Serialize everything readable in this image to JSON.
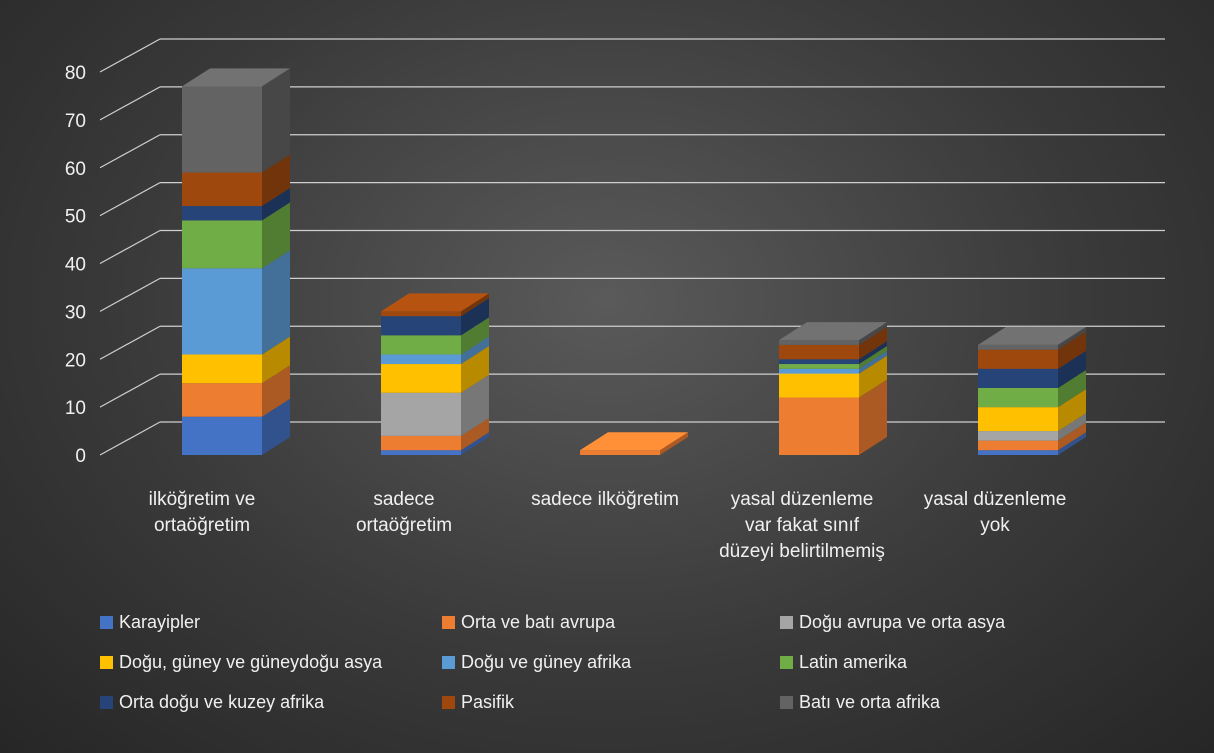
{
  "chart_data": {
    "type": "bar",
    "stacked": true,
    "three_d": true,
    "categories": [
      "ilköğretim ve ortaöğretim",
      "sadece ortaöğretim",
      "sadece ilköğretim",
      "yasal düzenleme var fakat sınıf düzeyi belirtilmemiş",
      "yasal düzenleme yok"
    ],
    "series": [
      {
        "name": "Karayipler",
        "color": "#4472c4",
        "values": [
          8,
          1,
          0,
          0,
          1
        ]
      },
      {
        "name": "Orta ve batı avrupa",
        "color": "#ed7d31",
        "values": [
          7,
          3,
          1,
          12,
          2
        ]
      },
      {
        "name": "Doğu avrupa ve orta asya",
        "color": "#a5a5a5",
        "values": [
          0,
          9,
          0,
          0,
          2
        ]
      },
      {
        "name": "Doğu, güney ve güneydoğu asya",
        "color": "#ffc000",
        "values": [
          6,
          6,
          0,
          5,
          5
        ]
      },
      {
        "name": "Doğu ve güney afrika",
        "color": "#5b9bd5",
        "values": [
          18,
          2,
          0,
          1,
          0
        ]
      },
      {
        "name": "Latin amerika",
        "color": "#70ad47",
        "values": [
          10,
          4,
          0,
          1,
          4
        ]
      },
      {
        "name": "Orta doğu ve kuzey afrika",
        "color": "#264478",
        "values": [
          3,
          4,
          0,
          1,
          4
        ]
      },
      {
        "name": "Pasifik",
        "color": "#9e480e",
        "values": [
          7,
          1,
          0,
          3,
          4
        ]
      },
      {
        "name": "Batı ve orta afrika",
        "color": "#636363",
        "values": [
          18,
          0,
          0,
          1,
          1
        ]
      }
    ],
    "yticks": [
      "0",
      "10",
      "20",
      "30",
      "40",
      "50",
      "60",
      "70",
      "80"
    ],
    "ylim": [
      0,
      80
    ],
    "grid": true,
    "legend_position": "bottom"
  }
}
